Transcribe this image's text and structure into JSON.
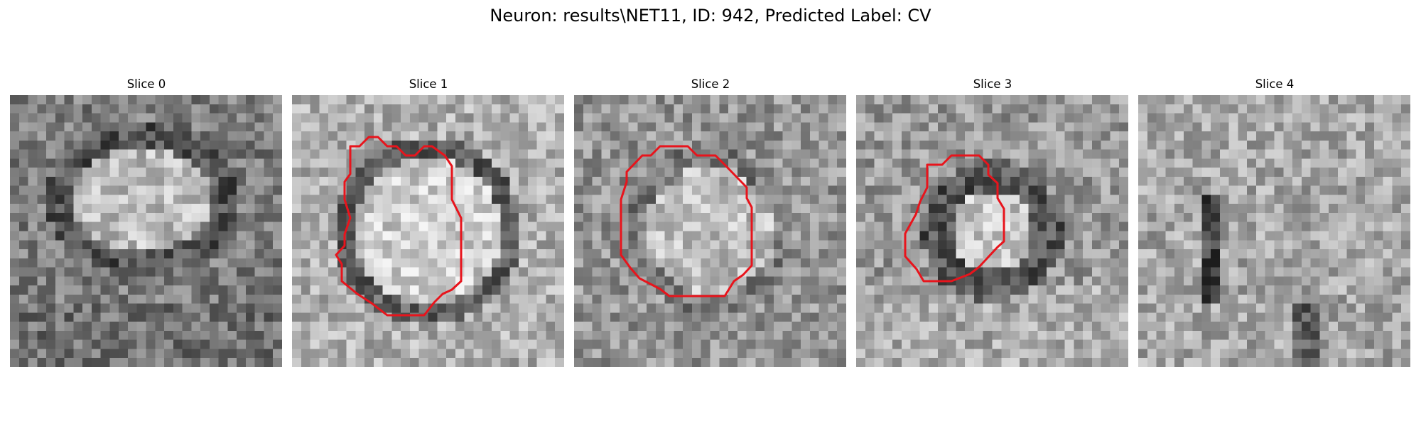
{
  "figure": {
    "title": "Neuron: results\\NET11, ID: 942, Predicted Label: CV",
    "contour_color": "#e8141c"
  },
  "panels": [
    {
      "title": "Slice 0",
      "has_contour": false
    },
    {
      "title": "Slice 1",
      "has_contour": true
    },
    {
      "title": "Slice 2",
      "has_contour": true
    },
    {
      "title": "Slice 3",
      "has_contour": true
    },
    {
      "title": "Slice 4",
      "has_contour": false
    }
  ]
}
